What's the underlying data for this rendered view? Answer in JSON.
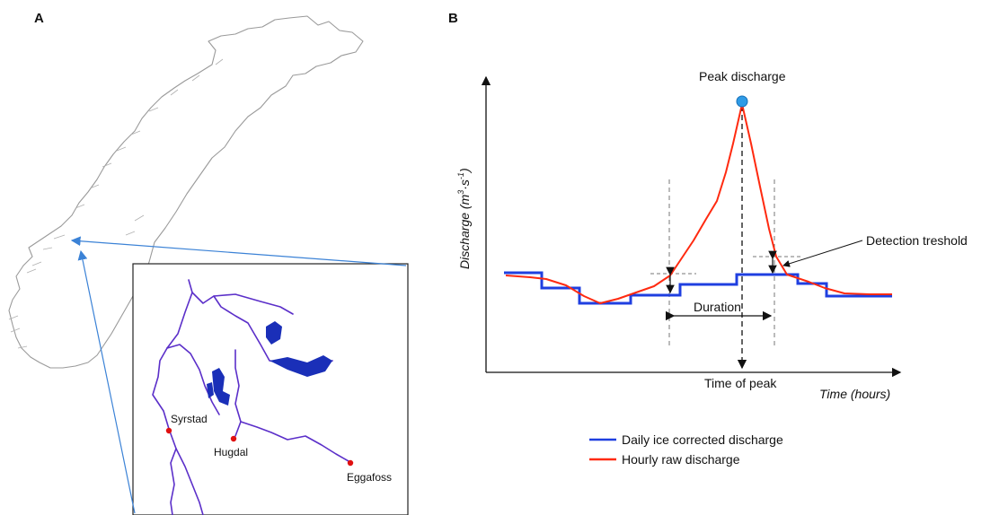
{
  "panel_a": {
    "label": "A",
    "stations": [
      {
        "name": "Syrstad"
      },
      {
        "name": "Hugdal"
      },
      {
        "name": "Eggafoss"
      }
    ]
  },
  "panel_b": {
    "label": "B",
    "y_axis_label": "Discharge (m",
    "y_axis_unit_sup": "3",
    "y_axis_unit_mid": "·s",
    "y_axis_unit_sup2": "-1",
    "y_axis_unit_end": ")",
    "x_axis_label": "Time (hours)",
    "peak_label": "Peak discharge",
    "time_of_peak_label": "Time of peak",
    "duration_label": "Duration",
    "threshold_label": "Detection treshold",
    "legend": [
      {
        "label": "Daily ice corrected discharge",
        "color": "#1f3fe0"
      },
      {
        "label": "Hourly raw discharge",
        "color": "#ff2a10"
      }
    ]
  },
  "colors": {
    "map_outline": "#9a9a9a",
    "river": "#5b2fc9",
    "lake": "#1a2fb8",
    "station": "#e01010",
    "pointer": "#3b82d6",
    "peak_marker": "#2f9be6"
  }
}
